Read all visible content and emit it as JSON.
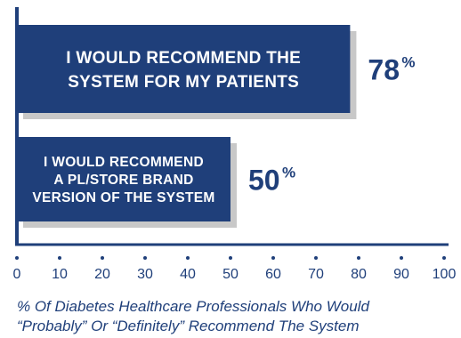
{
  "chart_data": {
    "type": "bar",
    "orientation": "horizontal",
    "categories": [
      [
        "I WOULD RECOMMEND THE",
        "SYSTEM FOR MY PATIENTS"
      ],
      [
        "I WOULD RECOMMEND",
        "A PL/STORE BRAND",
        "VERSION OF THE SYSTEM"
      ]
    ],
    "values": [
      78,
      50
    ],
    "value_labels": [
      {
        "number": "78",
        "suffix": "%"
      },
      {
        "number": "50",
        "suffix": "%"
      }
    ],
    "x_ticks": [
      "0",
      "10",
      "20",
      "30",
      "40",
      "50",
      "60",
      "70",
      "80",
      "90",
      "100"
    ],
    "xlim": [
      0,
      100
    ],
    "caption": [
      "% Of Diabetes Healthcare Professionals Who Would",
      "“Probably” Or “Definitely” Recommend The System"
    ],
    "grid": false,
    "colors": {
      "bar": "#1f3f7a",
      "shadow": "#c8c8c8",
      "axis": "#1f3f7a",
      "text": "#1f3f7a"
    }
  }
}
